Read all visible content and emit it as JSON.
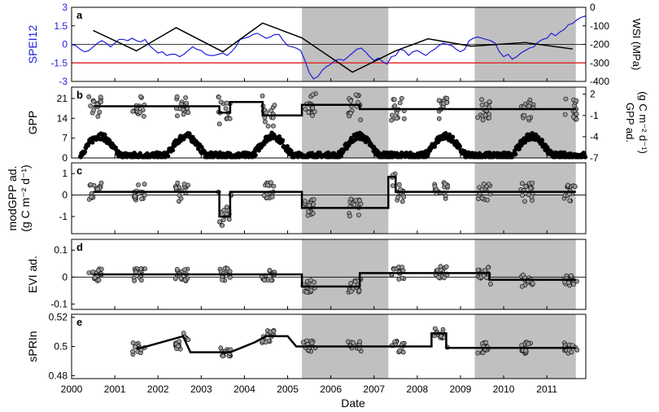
{
  "chart_data": {
    "type": "multi-panel time series",
    "colors": {
      "spei": "#1f1fdc",
      "threshold": "#e03030",
      "drought_shade": "#c0c0c0",
      "points_fill": "#9a9a9a",
      "black": "#000000"
    },
    "x_axis": {
      "label": "Date",
      "range": [
        2000,
        2011.9
      ],
      "ticks": [
        2000,
        2001,
        2002,
        2003,
        2004,
        2005,
        2006,
        2007,
        2008,
        2009,
        2010,
        2011
      ],
      "tick_labels": [
        "2000",
        "2001",
        "2002",
        "2003",
        "2004",
        "2005",
        "2006",
        "2007",
        "2008",
        "2009",
        "2010",
        "2011"
      ]
    },
    "drought_periods": [
      [
        2005.33,
        2007.33
      ],
      [
        2009.33,
        2011.67
      ]
    ],
    "panels": [
      {
        "letter": "a",
        "ylabel": "SPEI12",
        "ylim": [
          -3,
          3
        ],
        "yticks": [
          3,
          1.5,
          0,
          -1.5,
          -3
        ],
        "ytick_labels": [
          "3",
          "1.5",
          "0",
          "-1.5",
          "-3"
        ],
        "y2label": "WSI (MPa)",
        "y2lim": [
          -400,
          0
        ],
        "y2ticks": [
          0,
          -100,
          -200,
          -300,
          -400
        ],
        "y2tick_labels": [
          "0",
          "-100",
          "-200",
          "-300",
          "-400"
        ],
        "threshold": -1.5,
        "spei_series": {
          "x": [
            2000.0,
            2000.1,
            2000.2,
            2000.3,
            2000.4,
            2000.5,
            2000.6,
            2000.7,
            2000.8,
            2000.9,
            2001.0,
            2001.1,
            2001.2,
            2001.3,
            2001.4,
            2001.5,
            2001.6,
            2001.7,
            2001.8,
            2001.9,
            2002.0,
            2002.1,
            2002.2,
            2002.3,
            2002.4,
            2002.5,
            2002.6,
            2002.7,
            2002.8,
            2002.9,
            2003.0,
            2003.1,
            2003.2,
            2003.3,
            2003.4,
            2003.5,
            2003.6,
            2003.7,
            2003.8,
            2003.9,
            2004.0,
            2004.1,
            2004.2,
            2004.3,
            2004.4,
            2004.5,
            2004.6,
            2004.7,
            2004.8,
            2004.9,
            2005.0,
            2005.1,
            2005.2,
            2005.3,
            2005.4,
            2005.5,
            2005.6,
            2005.7,
            2005.8,
            2005.9,
            2006.0,
            2006.1,
            2006.2,
            2006.3,
            2006.4,
            2006.5,
            2006.6,
            2006.7,
            2006.8,
            2006.9,
            2007.0,
            2007.1,
            2007.2,
            2007.3,
            2007.4,
            2007.5,
            2007.6,
            2007.7,
            2007.8,
            2007.9,
            2008.0,
            2008.1,
            2008.2,
            2008.3,
            2008.4,
            2008.5,
            2008.6,
            2008.7,
            2008.8,
            2008.9,
            2009.0,
            2009.1,
            2009.2,
            2009.3,
            2009.4,
            2009.5,
            2009.6,
            2009.7,
            2009.8,
            2009.9,
            2010.0,
            2010.1,
            2010.2,
            2010.3,
            2010.4,
            2010.5,
            2010.6,
            2010.7,
            2010.8,
            2010.9,
            2011.0,
            2011.1,
            2011.2,
            2011.3,
            2011.4,
            2011.5,
            2011.6,
            2011.7,
            2011.8,
            2011.9
          ],
          "y": [
            0.0,
            -0.1,
            -0.4,
            -0.6,
            -0.5,
            -0.2,
            0.1,
            0.3,
            0.1,
            -0.2,
            0.1,
            0.4,
            0.4,
            0.3,
            0.5,
            0.3,
            0.2,
            0.4,
            -0.1,
            -0.4,
            -0.7,
            -0.6,
            -0.9,
            -0.8,
            -0.8,
            -1.0,
            -0.8,
            -0.5,
            -0.2,
            -0.4,
            -0.5,
            -0.8,
            -0.9,
            -0.9,
            -0.8,
            -0.7,
            -0.9,
            -0.6,
            -0.2,
            0.4,
            0.5,
            0.6,
            0.8,
            0.9,
            0.7,
            0.5,
            0.6,
            0.8,
            0.8,
            0.3,
            -0.1,
            -0.2,
            -0.3,
            -0.5,
            -1.3,
            -2.3,
            -2.8,
            -2.6,
            -2.1,
            -1.8,
            -1.6,
            -1.3,
            -1.2,
            -1.3,
            -1.0,
            -0.7,
            -0.4,
            -0.3,
            -0.6,
            -1.0,
            -1.3,
            -1.1,
            -1.4,
            -1.6,
            -1.0,
            -0.9,
            -0.4,
            -0.5,
            -0.9,
            -0.6,
            -0.5,
            -0.7,
            -0.9,
            -0.6,
            -0.4,
            -0.1,
            0.1,
            0.0,
            -0.1,
            -0.4,
            -0.6,
            -0.4,
            0.3,
            0.5,
            0.6,
            0.5,
            0.4,
            0.3,
            0.1,
            -0.6,
            -1.0,
            -0.8,
            -1.2,
            -1.0,
            -0.7,
            -0.5,
            -0.3,
            -0.2,
            0.2,
            0.4,
            0.5,
            0.9,
            0.7,
            1.0,
            1.2,
            1.6,
            1.7,
            2.0,
            2.2,
            2.3
          ]
        },
        "wsi_series": {
          "x": [
            2000.5,
            2001.5,
            2002.42,
            2003.5,
            2004.42,
            2005.33,
            2006.5,
            2007.5,
            2008.25,
            2009.25,
            2010.5,
            2011.6
          ],
          "y": [
            -125,
            -235,
            -110,
            -240,
            -85,
            -165,
            -350,
            -235,
            -170,
            -210,
            -190,
            -225
          ]
        }
      },
      {
        "letter": "b",
        "ylabel": "GPP",
        "ylim": [
          0,
          25
        ],
        "yticks": [
          0,
          7,
          14,
          21
        ],
        "ytick_labels": [
          "0",
          "7",
          "14",
          "21"
        ],
        "y2label": "GPP ad. (g C m⁻² d⁻¹)",
        "y2lim": [
          -7,
          3
        ],
        "y2ticks": [
          2,
          -1,
          -4,
          -7
        ],
        "y2tick_labels": [
          "2",
          "-1",
          "-4",
          "-7"
        ],
        "step_line": {
          "x": [
            2000.5,
            2003.42,
            2003.42,
            2003.67,
            2003.67,
            2004.42,
            2004.42,
            2005.33,
            2005.33,
            2006.67,
            2006.67,
            2008.67,
            2008.67,
            2011.67
          ],
          "y": [
            0.3,
            0.3,
            -0.6,
            -0.6,
            0.9,
            0.9,
            -1.0,
            -1.0,
            0.5,
            0.5,
            -0.1,
            -0.1,
            -0.1,
            -0.1
          ]
        },
        "daily_series": {
          "x_start": 2000.2,
          "x_end": 2011.9,
          "amplitude_peak": 7.8,
          "amplitude_base": 0.8
        }
      },
      {
        "letter": "c",
        "ylabel": "modGPP ad. (g C m⁻² d⁻¹)",
        "ylim": [
          -1.8,
          1.5
        ],
        "yticks": [
          1,
          0,
          -1
        ],
        "ytick_labels": [
          "1",
          "0",
          "-1"
        ],
        "step_line": {
          "x": [
            2000.5,
            2003.42,
            2003.42,
            2003.67,
            2003.67,
            2005.33,
            2005.33,
            2007.33,
            2007.33,
            2007.5,
            2007.5,
            2011.67
          ],
          "y": [
            0.15,
            0.15,
            -1.0,
            -1.0,
            0.15,
            0.15,
            -0.6,
            -0.6,
            0.85,
            0.85,
            0.15,
            0.15
          ]
        }
      },
      {
        "letter": "d",
        "ylabel": "EVI ad.",
        "ylim": [
          -0.12,
          0.14
        ],
        "yticks": [
          0.1,
          0,
          -0.1
        ],
        "ytick_labels": [
          "0.1",
          "0",
          "-0.1"
        ],
        "step_line": {
          "x": [
            2000.5,
            2005.33,
            2005.33,
            2006.67,
            2006.67,
            2009.67,
            2009.67,
            2011.67
          ],
          "y": [
            0.01,
            0.01,
            -0.035,
            -0.035,
            0.015,
            0.015,
            -0.01,
            -0.01
          ]
        }
      },
      {
        "letter": "e",
        "ylabel": "sPRIn",
        "ylim": [
          0.478,
          0.522
        ],
        "yticks": [
          0.52,
          0.5,
          0.48
        ],
        "ytick_labels": [
          "0.52",
          "0.5",
          "0.48"
        ],
        "step_line": {
          "x": [
            2001.5,
            2001.67,
            2002.58,
            2002.58,
            2002.75,
            2002.75,
            2003.67,
            2004.25,
            2004.5,
            2005.0,
            2005.2,
            2005.33,
            2006.5,
            2007.25,
            2008.33,
            2008.33,
            2008.67,
            2008.67,
            2009.5,
            2011.67
          ],
          "y": [
            0.4985,
            0.4995,
            0.507,
            0.507,
            0.496,
            0.496,
            0.496,
            0.503,
            0.507,
            0.507,
            0.5,
            0.5,
            0.5,
            0.5,
            0.5,
            0.509,
            0.509,
            0.499,
            0.499,
            0.499
          ]
        }
      }
    ],
    "annual_clusters": [
      2000.55,
      2001.55,
      2002.55,
      2003.55,
      2004.55,
      2005.5,
      2006.55,
      2007.55,
      2008.55,
      2009.55,
      2010.55,
      2011.55
    ]
  }
}
